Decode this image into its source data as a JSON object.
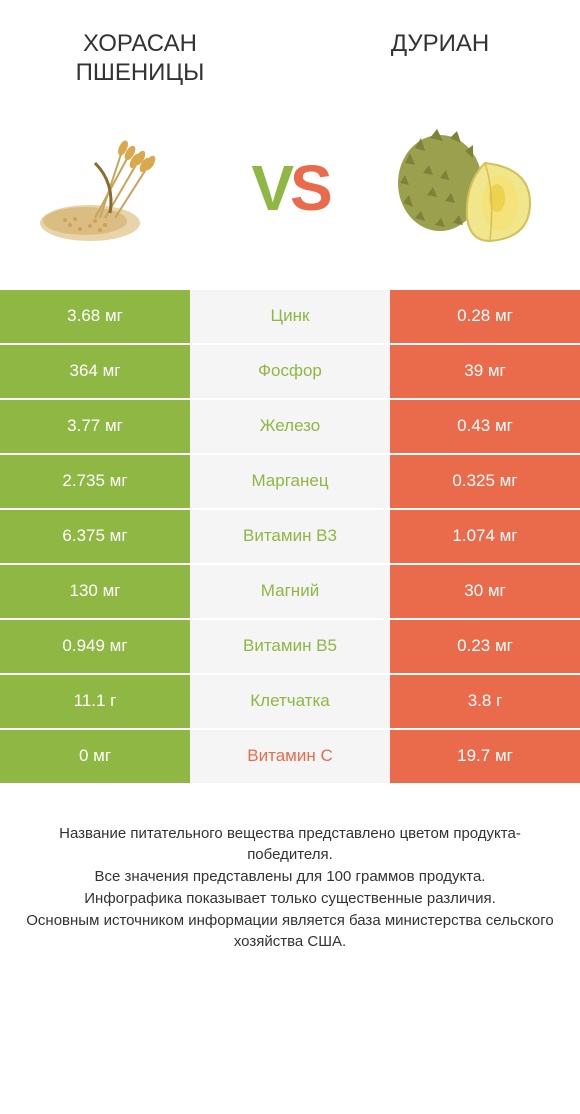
{
  "header": {
    "left_title": "ХОРАСАН ПШЕНИЦЫ",
    "right_title": "ДУРИАН"
  },
  "vs": {
    "v": "V",
    "s": "S"
  },
  "colors": {
    "green": "#8eb743",
    "orange": "#ea6b4c",
    "mid_bg": "#f5f5f5",
    "text": "#333333"
  },
  "rows": [
    {
      "left": "3.68 мг",
      "label": "Цинк",
      "right": "0.28 мг",
      "winner": "left"
    },
    {
      "left": "364 мг",
      "label": "Фосфор",
      "right": "39 мг",
      "winner": "left"
    },
    {
      "left": "3.77 мг",
      "label": "Железо",
      "right": "0.43 мг",
      "winner": "left"
    },
    {
      "left": "2.735 мг",
      "label": "Марганец",
      "right": "0.325 мг",
      "winner": "left"
    },
    {
      "left": "6.375 мг",
      "label": "Витамин B3",
      "right": "1.074 мг",
      "winner": "left"
    },
    {
      "left": "130 мг",
      "label": "Магний",
      "right": "30 мг",
      "winner": "left"
    },
    {
      "left": "0.949 мг",
      "label": "Витамин B5",
      "right": "0.23 мг",
      "winner": "left"
    },
    {
      "left": "11.1 г",
      "label": "Клетчатка",
      "right": "3.8 г",
      "winner": "left"
    },
    {
      "left": "0 мг",
      "label": "Витамин C",
      "right": "19.7 мг",
      "winner": "right"
    }
  ],
  "footer": {
    "line1": "Название питательного вещества представлено цветом продукта-победителя.",
    "line2": "Все значения представлены для 100 граммов продукта.",
    "line3": "Инфографика показывает только существенные различия.",
    "line4": "Основным источником информации является база министерства сельского хозяйства США."
  },
  "typography": {
    "title_fontsize": 24,
    "vs_fontsize": 64,
    "cell_fontsize": 17,
    "footer_fontsize": 15
  }
}
